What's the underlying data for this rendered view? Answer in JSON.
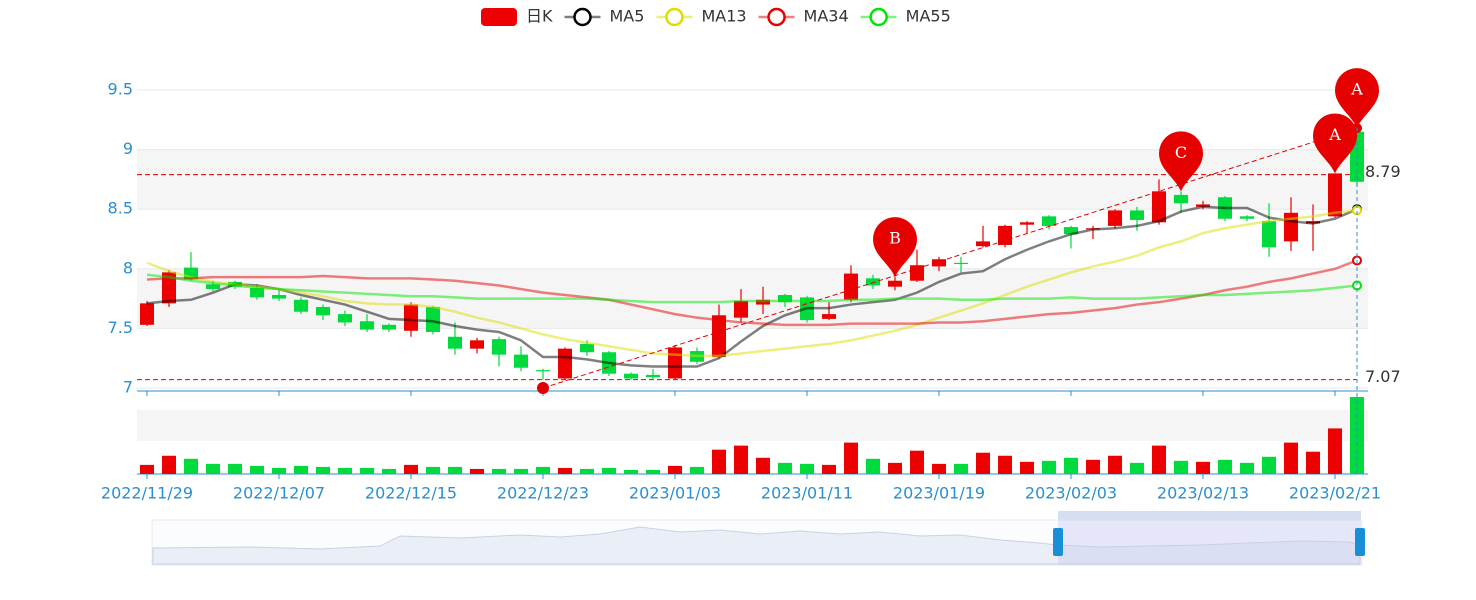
{
  "chart_data": {
    "type": "candlestick",
    "categories": [
      "2022/11/29",
      null,
      null,
      null,
      null,
      null,
      "2022/12/07",
      null,
      null,
      null,
      null,
      null,
      "2022/12/15",
      null,
      null,
      null,
      null,
      null,
      "2022/12/23",
      null,
      null,
      null,
      null,
      null,
      "2023/01/03",
      null,
      null,
      null,
      null,
      null,
      "2023/01/11",
      null,
      null,
      null,
      null,
      null,
      "2023/01/19",
      null,
      null,
      null,
      null,
      null,
      "2023/02/03",
      null,
      null,
      null,
      null,
      null,
      "2023/02/13",
      null,
      null,
      null,
      null,
      null,
      "2023/02/21",
      null
    ],
    "ylim": [
      7,
      9.5
    ],
    "yticks": [
      7,
      7.5,
      8,
      8.5,
      9,
      9.5
    ],
    "up_color": "#ec0000",
    "down_color": "#00da3c",
    "series": [
      {
        "name": "日K",
        "type": "candlestick",
        "color": "#ec0000",
        "values": [
          [
            7.53,
            7.71,
            7.52,
            7.73
          ],
          [
            7.71,
            7.97,
            7.68,
            7.99
          ],
          [
            8.01,
            7.91,
            7.9,
            8.14
          ],
          [
            7.87,
            7.83,
            7.81,
            7.9
          ],
          [
            7.89,
            7.85,
            7.83,
            7.9
          ],
          [
            7.84,
            7.76,
            7.74,
            7.87
          ],
          [
            7.78,
            7.75,
            7.73,
            7.82
          ],
          [
            7.74,
            7.64,
            7.62,
            7.76
          ],
          [
            7.68,
            7.61,
            7.57,
            7.7
          ],
          [
            7.62,
            7.55,
            7.52,
            7.65
          ],
          [
            7.56,
            7.49,
            7.47,
            7.62
          ],
          [
            7.53,
            7.49,
            7.47,
            7.54
          ],
          [
            7.48,
            7.7,
            7.43,
            7.72
          ],
          [
            7.68,
            7.47,
            7.45,
            7.69
          ],
          [
            7.43,
            7.33,
            7.28,
            7.55
          ],
          [
            7.33,
            7.4,
            7.29,
            7.42
          ],
          [
            7.41,
            7.28,
            7.18,
            7.43
          ],
          [
            7.28,
            7.17,
            7.14,
            7.35
          ],
          [
            7.15,
            7.14,
            7.07,
            7.16
          ],
          [
            7.08,
            7.33,
            7.07,
            7.34
          ],
          [
            7.37,
            7.3,
            7.27,
            7.4
          ],
          [
            7.3,
            7.12,
            7.1,
            7.31
          ],
          [
            7.12,
            7.08,
            7.07,
            7.13
          ],
          [
            7.11,
            7.09,
            7.07,
            7.16
          ],
          [
            7.08,
            7.34,
            7.07,
            7.36
          ],
          [
            7.31,
            7.22,
            7.2,
            7.34
          ],
          [
            7.26,
            7.61,
            7.25,
            7.7
          ],
          [
            7.59,
            7.73,
            7.55,
            7.83
          ],
          [
            7.7,
            7.74,
            7.62,
            7.85
          ],
          [
            7.78,
            7.72,
            7.68,
            7.79
          ],
          [
            7.76,
            7.57,
            7.55,
            7.77
          ],
          [
            7.58,
            7.62,
            7.57,
            7.72
          ],
          [
            7.74,
            7.96,
            7.72,
            8.03
          ],
          [
            7.92,
            7.86,
            7.83,
            7.95
          ],
          [
            7.85,
            7.9,
            7.82,
            7.93
          ],
          [
            7.9,
            8.03,
            7.89,
            8.16
          ],
          [
            8.02,
            8.08,
            7.98,
            8.1
          ],
          [
            8.05,
            8.04,
            7.97,
            8.1
          ],
          [
            8.19,
            8.23,
            8.18,
            8.36
          ],
          [
            8.2,
            8.36,
            8.18,
            8.37
          ],
          [
            8.37,
            8.39,
            8.3,
            8.4
          ],
          [
            8.44,
            8.36,
            8.33,
            8.45
          ],
          [
            8.35,
            8.29,
            8.17,
            8.36
          ],
          [
            8.33,
            8.34,
            8.25,
            8.36
          ],
          [
            8.36,
            8.49,
            8.34,
            8.5
          ],
          [
            8.49,
            8.41,
            8.32,
            8.52
          ],
          [
            8.39,
            8.65,
            8.37,
            8.75
          ],
          [
            8.62,
            8.55,
            8.47,
            8.65
          ],
          [
            8.52,
            8.54,
            8.5,
            8.57
          ],
          [
            8.6,
            8.42,
            8.4,
            8.61
          ],
          [
            8.44,
            8.42,
            8.4,
            8.45
          ],
          [
            8.4,
            8.18,
            8.1,
            8.55
          ],
          [
            8.23,
            8.47,
            8.15,
            8.6
          ],
          [
            8.38,
            8.4,
            8.15,
            8.54
          ],
          [
            8.44,
            8.8,
            8.43,
            8.8
          ],
          [
            9.15,
            8.73,
            8.7,
            9.2
          ]
        ]
      },
      {
        "name": "MA5",
        "type": "line",
        "color": "#000000",
        "values": [
          7.71,
          7.73,
          7.74,
          7.8,
          7.87,
          7.86,
          7.83,
          7.78,
          7.74,
          7.7,
          7.64,
          7.58,
          7.57,
          7.56,
          7.52,
          7.49,
          7.47,
          7.4,
          7.26,
          7.26,
          7.24,
          7.21,
          7.19,
          7.18,
          7.18,
          7.18,
          7.25,
          7.39,
          7.52,
          7.61,
          7.67,
          7.67,
          7.7,
          7.72,
          7.74,
          7.8,
          7.89,
          7.96,
          7.98,
          8.08,
          8.16,
          8.23,
          8.29,
          8.33,
          8.34,
          8.36,
          8.4,
          8.48,
          8.52,
          8.51,
          8.51,
          8.43,
          8.4,
          8.38,
          8.42,
          8.5
        ]
      },
      {
        "name": "MA13",
        "type": "line",
        "color": "#dddd00",
        "values": [
          8.05,
          7.98,
          7.93,
          7.89,
          7.87,
          7.85,
          7.83,
          7.8,
          7.77,
          7.73,
          7.71,
          7.7,
          7.7,
          7.68,
          7.64,
          7.59,
          7.55,
          7.5,
          7.45,
          7.41,
          7.38,
          7.35,
          7.32,
          7.29,
          7.28,
          7.27,
          7.27,
          7.29,
          7.31,
          7.33,
          7.35,
          7.37,
          7.4,
          7.44,
          7.48,
          7.53,
          7.59,
          7.65,
          7.71,
          7.78,
          7.85,
          7.91,
          7.97,
          8.02,
          8.06,
          8.11,
          8.18,
          8.23,
          8.3,
          8.34,
          8.37,
          8.4,
          8.42,
          8.44,
          8.47,
          8.49
        ]
      },
      {
        "name": "MA34",
        "type": "line",
        "color": "#e60000",
        "values": [
          7.91,
          7.92,
          7.92,
          7.93,
          7.93,
          7.93,
          7.93,
          7.93,
          7.94,
          7.93,
          7.92,
          7.92,
          7.92,
          7.91,
          7.9,
          7.88,
          7.86,
          7.83,
          7.8,
          7.78,
          7.76,
          7.74,
          7.7,
          7.66,
          7.62,
          7.59,
          7.57,
          7.55,
          7.54,
          7.53,
          7.53,
          7.53,
          7.54,
          7.54,
          7.54,
          7.54,
          7.55,
          7.55,
          7.56,
          7.58,
          7.6,
          7.62,
          7.63,
          7.65,
          7.67,
          7.7,
          7.72,
          7.75,
          7.78,
          7.82,
          7.85,
          7.89,
          7.92,
          7.96,
          8.0,
          8.07
        ]
      },
      {
        "name": "MA55",
        "type": "line",
        "color": "#00e600",
        "values": [
          7.95,
          7.93,
          7.9,
          7.88,
          7.86,
          7.84,
          7.83,
          7.82,
          7.81,
          7.8,
          7.79,
          7.78,
          7.77,
          7.77,
          7.76,
          7.75,
          7.75,
          7.75,
          7.75,
          7.75,
          7.75,
          7.74,
          7.73,
          7.72,
          7.72,
          7.72,
          7.72,
          7.73,
          7.73,
          7.73,
          7.73,
          7.73,
          7.74,
          7.74,
          7.75,
          7.75,
          7.75,
          7.74,
          7.74,
          7.75,
          7.75,
          7.75,
          7.76,
          7.75,
          7.75,
          7.75,
          7.76,
          7.77,
          7.78,
          7.78,
          7.79,
          7.8,
          7.81,
          7.82,
          7.84,
          7.86
        ]
      }
    ],
    "volume": [
      9,
      18,
      15,
      10,
      10,
      8,
      6,
      8,
      7,
      6,
      6,
      5,
      9,
      7,
      7,
      5,
      5,
      5,
      7,
      6,
      5,
      6,
      4,
      4,
      8,
      7,
      24,
      28,
      16,
      11,
      10,
      9,
      31,
      15,
      11,
      23,
      10,
      10,
      21,
      18,
      12,
      13,
      16,
      14,
      18,
      11,
      28,
      13,
      12,
      14,
      11,
      17,
      31,
      22,
      45,
      76
    ],
    "mark_lines": [
      8.79,
      7.07
    ],
    "trend_line": {
      "from": {
        "category": 18,
        "value": 7.0
      },
      "to": {
        "category": 55,
        "value": 9.18
      }
    },
    "mark_points": [
      {
        "label": "A",
        "category": 55,
        "value": 9.18
      },
      {
        "label": "A",
        "category": 54,
        "value": 8.8
      },
      {
        "label": "C",
        "category": 47,
        "value": 8.65
      },
      {
        "label": "B",
        "category": 34,
        "value": 7.93
      }
    ]
  }
}
